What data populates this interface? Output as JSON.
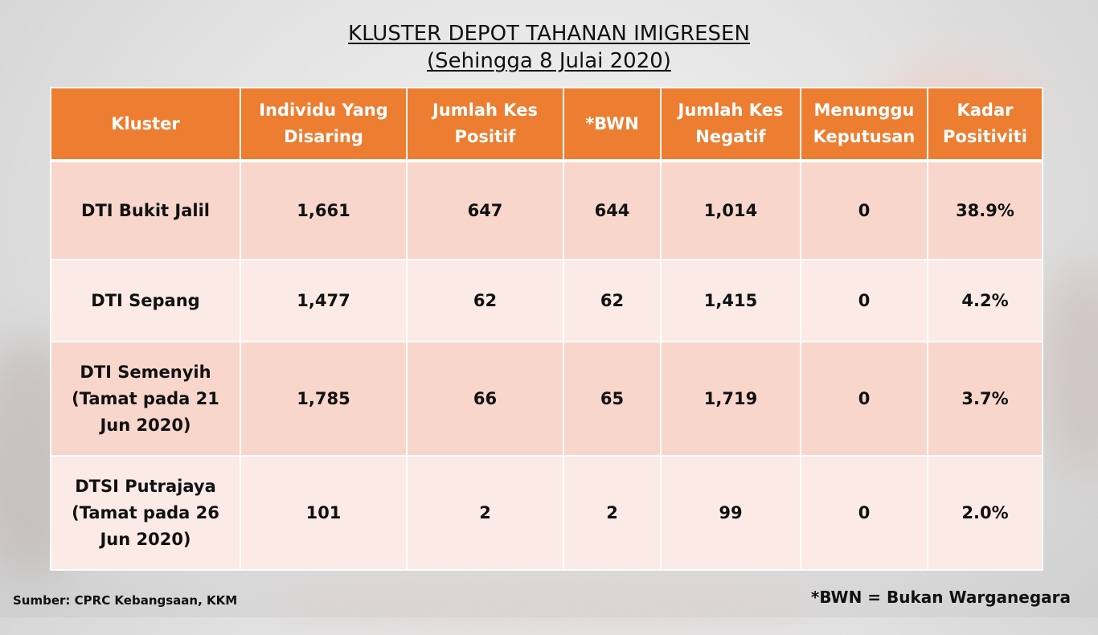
{
  "title": "KLUSTER DEPOT TAHANAN IMIGRESEN",
  "subtitle": "(Sehingga 8 Julai 2020)",
  "table": {
    "headers": [
      "Kluster",
      "Individu Yang Disaring",
      "Jumlah Kes Positif",
      "*BWN",
      "Jumlah Kes Negatif",
      "Menunggu Keputusan",
      "Kadar Positiviti"
    ],
    "rows": [
      [
        "DTI Bukit Jalil",
        "1,661",
        "647",
        "644",
        "1,014",
        "0",
        "38.9%"
      ],
      [
        "DTI Sepang",
        "1,477",
        "62",
        "62",
        "1,415",
        "0",
        "4.2%"
      ],
      [
        "DTI Semenyih (Tamat pada 21 Jun 2020)",
        "1,785",
        "66",
        "65",
        "1,719",
        "0",
        "3.7%"
      ],
      [
        "DTSI Putrajaya (Tamat pada 26 Jun 2020)",
        "101",
        "2",
        "2",
        "99",
        "0",
        "2.0%"
      ]
    ]
  },
  "source": "Sumber: CPRC Kebangsaan, KKM",
  "footnote": "*BWN = Bukan Warganegara",
  "colors": {
    "header_bg": "#ed7d31",
    "row_dark": "#f8d6cc",
    "row_light": "#fbeae6"
  }
}
